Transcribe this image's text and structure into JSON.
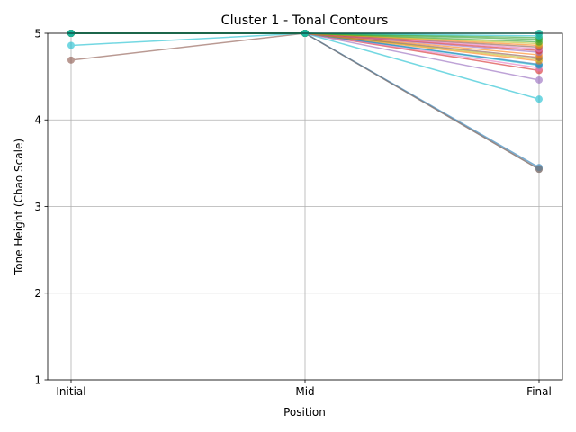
{
  "chart_data": {
    "type": "line",
    "title": "Cluster 1 - Tonal Contours",
    "xlabel": "Position",
    "ylabel": "Tone Height (Chao Scale)",
    "categories": [
      "Initial",
      "Mid",
      "Final"
    ],
    "ylim": [
      1,
      5
    ],
    "yticks": [
      1,
      2,
      3,
      4,
      5
    ],
    "grid": true,
    "marker": "circle",
    "series_alpha": 0.6,
    "series": [
      {
        "color": "#8c564b",
        "values": [
          4.69,
          5.0,
          3.43
        ]
      },
      {
        "color": "#17becf",
        "values": [
          4.86,
          5.0,
          4.24
        ]
      },
      {
        "color": "#1f77b4",
        "values": [
          5.0,
          5.0,
          3.45
        ]
      },
      {
        "color": "#7f7f7f",
        "values": [
          5.0,
          5.0,
          3.43
        ]
      },
      {
        "color": "#9467bd",
        "values": [
          5.0,
          5.0,
          4.46
        ]
      },
      {
        "color": "#d62728",
        "values": [
          5.0,
          5.0,
          4.57
        ]
      },
      {
        "color": "#e377c2",
        "values": [
          5.0,
          5.0,
          4.6
        ]
      },
      {
        "color": "#17becf",
        "values": [
          5.0,
          5.0,
          4.63
        ]
      },
      {
        "color": "#1f77b4",
        "values": [
          5.0,
          5.0,
          4.64
        ]
      },
      {
        "color": "#ff7f0e",
        "values": [
          5.0,
          5.0,
          4.68
        ]
      },
      {
        "color": "#bcbd22",
        "values": [
          5.0,
          5.0,
          4.7
        ]
      },
      {
        "color": "#8c564b",
        "values": [
          5.0,
          5.0,
          4.72
        ]
      },
      {
        "color": "#ff7f0e",
        "values": [
          5.0,
          5.0,
          4.75
        ]
      },
      {
        "color": "#9467bd",
        "values": [
          5.0,
          5.0,
          4.78
        ]
      },
      {
        "color": "#d62728",
        "values": [
          5.0,
          5.0,
          4.8
        ]
      },
      {
        "color": "#e377c2",
        "values": [
          5.0,
          5.0,
          4.82
        ]
      },
      {
        "color": "#8c564b",
        "values": [
          5.0,
          5.0,
          4.84
        ]
      },
      {
        "color": "#ff7f0e",
        "values": [
          5.0,
          5.0,
          4.86
        ]
      },
      {
        "color": "#bcbd22",
        "values": [
          5.0,
          5.0,
          4.88
        ]
      },
      {
        "color": "#2ca02c",
        "values": [
          5.0,
          5.0,
          4.9
        ]
      },
      {
        "color": "#2ca02c",
        "values": [
          5.0,
          5.0,
          4.93
        ]
      },
      {
        "color": "#2ca02c",
        "values": [
          5.0,
          5.0,
          4.95
        ]
      },
      {
        "color": "#17becf",
        "values": [
          5.0,
          5.0,
          4.97
        ]
      },
      {
        "color": "#2ca02c",
        "values": [
          5.0,
          5.0,
          5.0
        ]
      },
      {
        "color": "#17becf",
        "values": [
          5.0,
          5.0,
          5.0
        ]
      }
    ]
  }
}
